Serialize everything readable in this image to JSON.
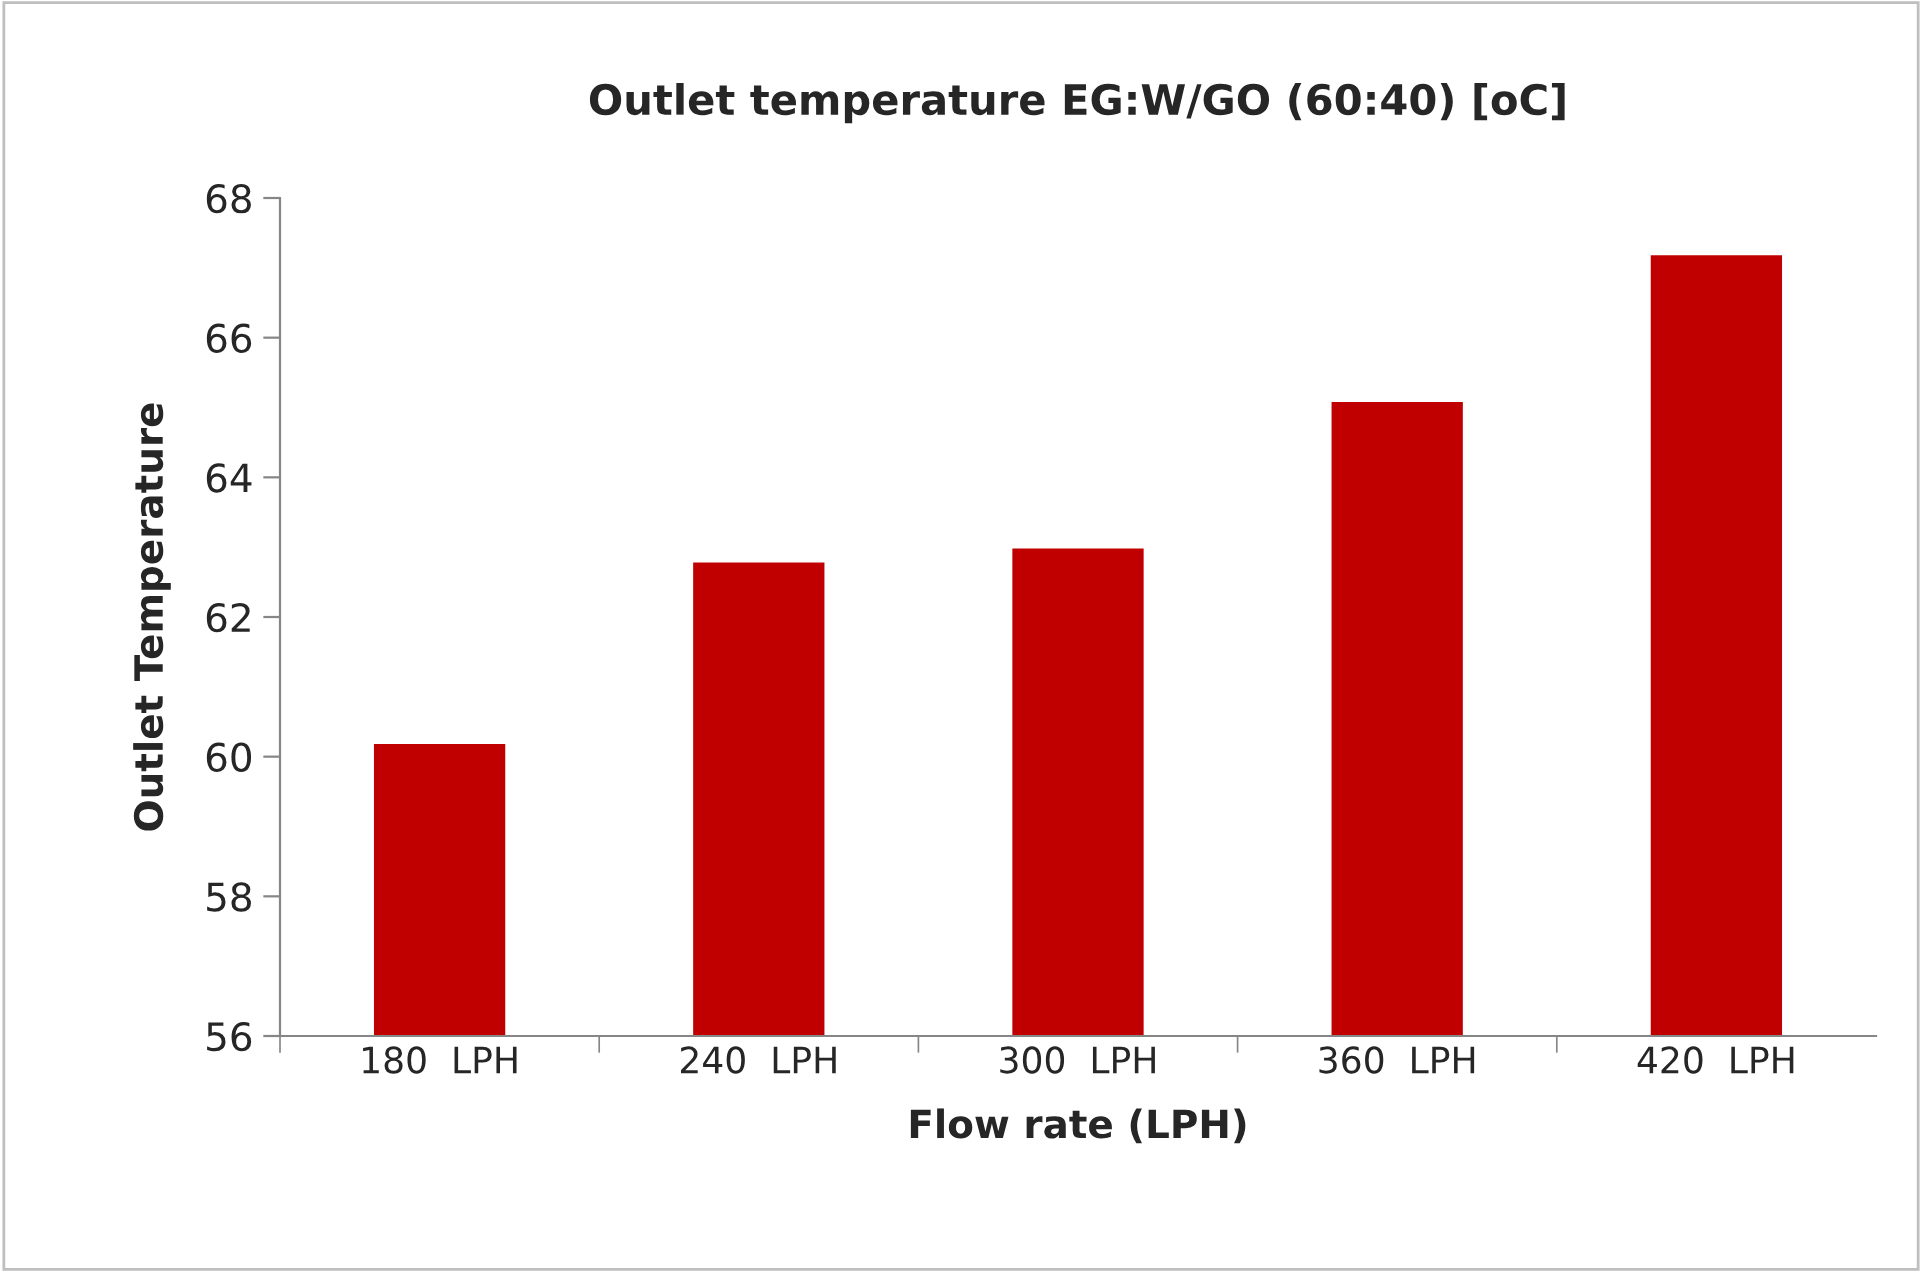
{
  "chart_data": {
    "type": "bar",
    "title": "Outlet temperature EG:W/GO (60:40) [oC]",
    "xlabel": "Flow rate (LPH)",
    "ylabel": "Outlet Temperature",
    "categories": [
      "180  LPH",
      "240  LPH",
      "300  LPH",
      "360  LPH",
      "420  LPH"
    ],
    "values": [
      60.2,
      62.8,
      63.0,
      65.1,
      67.2
    ],
    "color": "#c00000",
    "ylim": [
      56,
      68
    ],
    "yticks": [
      56,
      58,
      60,
      62,
      64,
      66,
      68
    ],
    "grid": false,
    "legend": false
  }
}
